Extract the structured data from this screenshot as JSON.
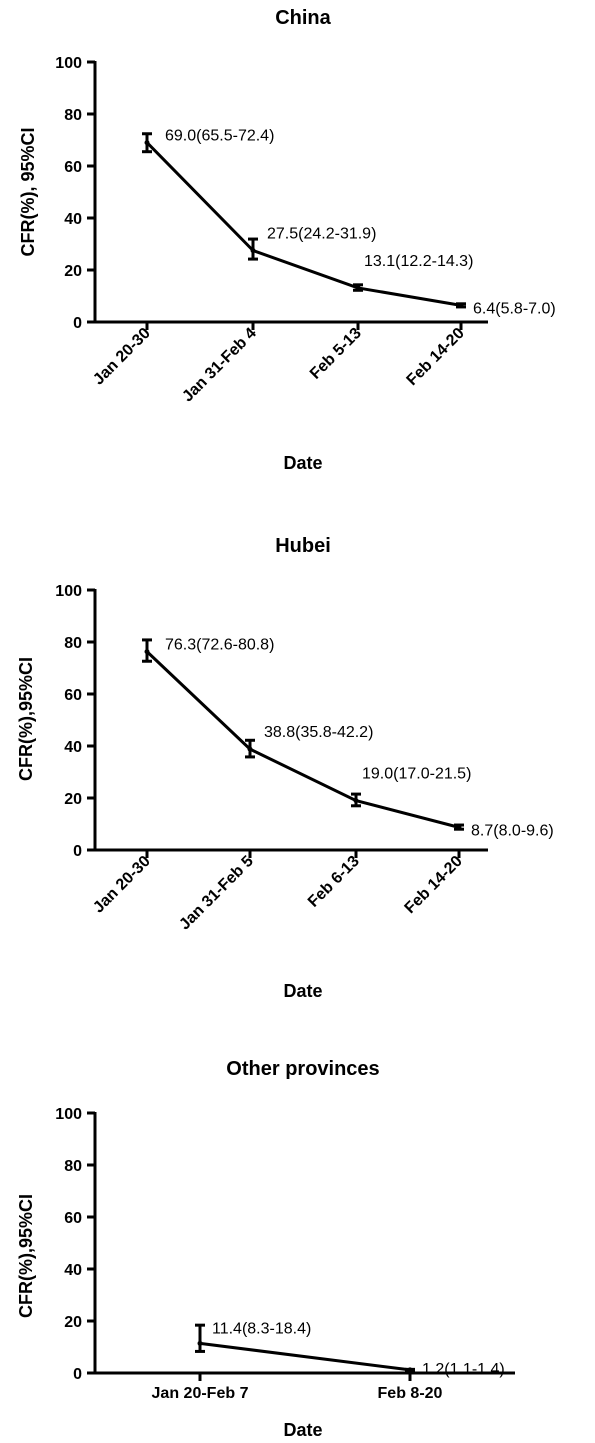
{
  "chart_data": [
    {
      "type": "line",
      "title": "China",
      "xlabel": "Date",
      "ylabel": "CFR(%),  95%CI",
      "ylim": [
        0,
        100
      ],
      "yticks": [
        0,
        20,
        40,
        60,
        80,
        100
      ],
      "grid": false,
      "categories": [
        "Jan 20-30",
        "Jan 31-Feb 4",
        "Feb 5-13",
        "Feb 14-20"
      ],
      "values": [
        69.0,
        27.5,
        13.1,
        6.4
      ],
      "ci_low": [
        65.5,
        24.2,
        12.2,
        5.8
      ],
      "ci_high": [
        72.4,
        31.9,
        14.3,
        7.0
      ],
      "labels": [
        "69.0(65.5-72.4)",
        "27.5(24.2-31.9)",
        "13.1(12.2-14.3)",
        "6.4(5.8-7.0)"
      ]
    },
    {
      "type": "line",
      "title": "Hubei",
      "xlabel": "Date",
      "ylabel": "CFR(%),95%CI",
      "ylim": [
        0,
        100
      ],
      "yticks": [
        0,
        20,
        40,
        60,
        80,
        100
      ],
      "grid": false,
      "categories": [
        "Jan 20-30",
        "Jan 31-Feb 5",
        "Feb 6-13",
        "Feb 14-20"
      ],
      "values": [
        76.3,
        38.8,
        19.0,
        8.7
      ],
      "ci_low": [
        72.6,
        35.8,
        17.0,
        8.0
      ],
      "ci_high": [
        80.8,
        42.2,
        21.5,
        9.6
      ],
      "labels": [
        "76.3(72.6-80.8)",
        "38.8(35.8-42.2)",
        "19.0(17.0-21.5)",
        "8.7(8.0-9.6)"
      ]
    },
    {
      "type": "line",
      "title": "Other provinces",
      "xlabel": "Date",
      "ylabel": "CFR(%),95%CI",
      "ylim": [
        0,
        100
      ],
      "yticks": [
        0,
        20,
        40,
        60,
        80,
        100
      ],
      "grid": false,
      "categories": [
        "Jan 20-Feb 7",
        "Feb 8-20"
      ],
      "values": [
        11.4,
        1.2
      ],
      "ci_low": [
        8.3,
        1.1
      ],
      "ci_high": [
        18.4,
        1.4
      ],
      "labels": [
        "11.4(8.3-18.4)",
        "1.2(1.1-1.4)"
      ]
    }
  ]
}
